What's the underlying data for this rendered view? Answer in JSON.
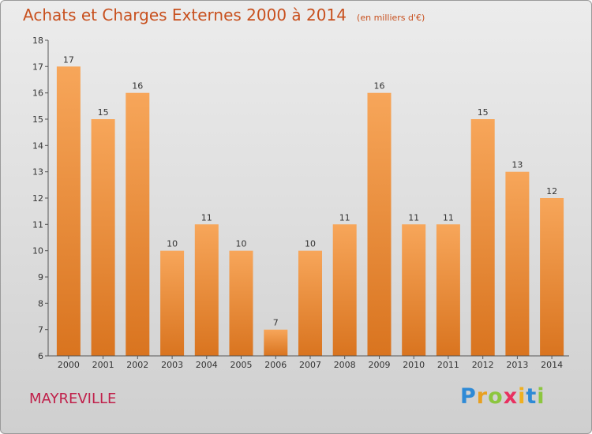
{
  "header": {
    "title": "Achats et Charges Externes 2000 à 2014",
    "subtitle": "(en milliers d'€)"
  },
  "footer": {
    "commune": "MAYREVILLE",
    "logo_letters": [
      "P",
      "r",
      "o",
      "x",
      "i",
      "t",
      "i"
    ],
    "logo_colors": [
      "#2e8ad6",
      "#e8a020",
      "#8cc63f",
      "#e83060",
      "#f0b020",
      "#2e8ad6",
      "#8cc63f"
    ]
  },
  "chart_data": {
    "type": "bar",
    "categories": [
      "2000",
      "2001",
      "2002",
      "2003",
      "2004",
      "2005",
      "2006",
      "2007",
      "2008",
      "2009",
      "2010",
      "2011",
      "2012",
      "2013",
      "2014"
    ],
    "values": [
      17,
      15,
      16,
      10,
      11,
      10,
      7,
      10,
      11,
      16,
      11,
      11,
      15,
      13,
      12
    ],
    "data_labels": [
      "17",
      "15",
      "16",
      "10",
      "11",
      "10",
      "7",
      "10",
      "11",
      "16",
      "11",
      "11",
      "15",
      "13",
      "12"
    ],
    "ylim": [
      6,
      18
    ],
    "yticks": [
      "6",
      "7",
      "8",
      "9",
      "10",
      "11",
      "12",
      "13",
      "14",
      "15",
      "16",
      "17",
      "18"
    ],
    "grid": false,
    "colors": {
      "bar_top": "#f7a65a",
      "bar_bottom": "#d9741f",
      "axis": "#555555",
      "label": "#333333"
    }
  }
}
